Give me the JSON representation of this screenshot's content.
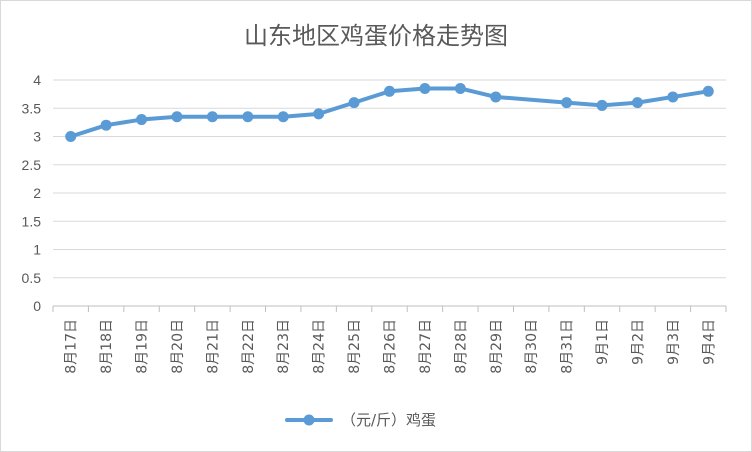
{
  "chart_data": {
    "type": "line",
    "title": "山东地区鸡蛋价格走势图",
    "categories": [
      "8月17日",
      "8月18日",
      "8月19日",
      "8月20日",
      "8月21日",
      "8月22日",
      "8月23日",
      "8月24日",
      "8月25日",
      "8月26日",
      "8月27日",
      "8月28日",
      "8月29日",
      "8月30日",
      "8月31日",
      "9月1日",
      "9月2日",
      "9月3日",
      "9月4日"
    ],
    "series": [
      {
        "name": "（元/斤）鸡蛋",
        "values": [
          3.0,
          3.2,
          3.3,
          3.35,
          3.35,
          3.35,
          3.35,
          3.4,
          3.6,
          3.8,
          3.85,
          3.85,
          3.7,
          null,
          3.6,
          3.55,
          3.6,
          3.7,
          3.8
        ],
        "color": "#5B9BD5"
      }
    ],
    "ylim": [
      0,
      4
    ],
    "yticks": [
      "0",
      "0.5",
      "1",
      "1.5",
      "2",
      "2.5",
      "3",
      "3.5",
      "4"
    ],
    "grid": true,
    "legend": "bottom"
  }
}
